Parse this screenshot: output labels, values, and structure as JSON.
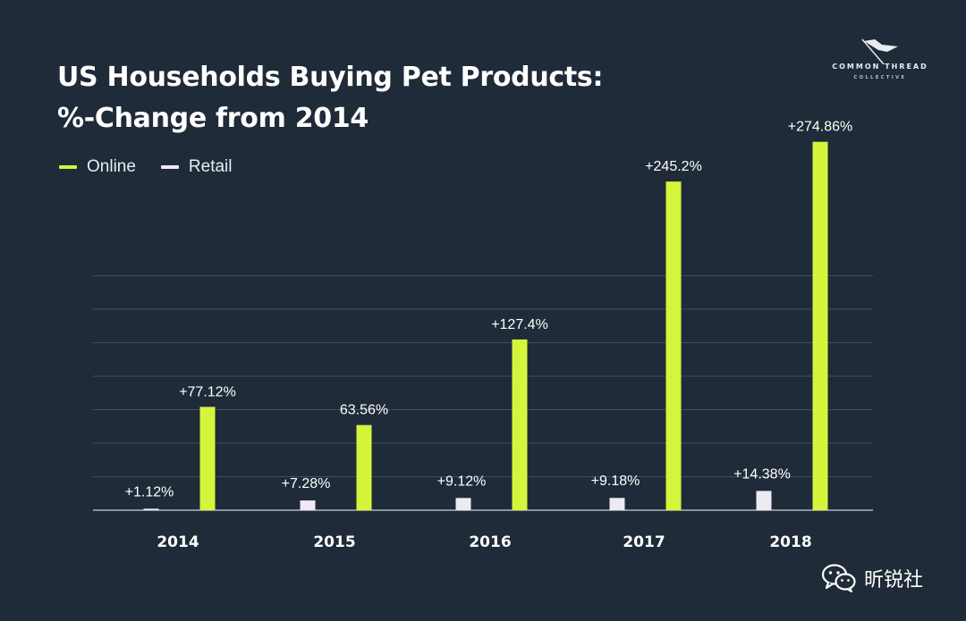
{
  "title_line1": "US Households Buying Pet Products:",
  "title_line2": "%-Change from 2014",
  "logo": {
    "main": "COMMON THREAD",
    "sub": "COLLECTIVE",
    "icon": "flag-icon"
  },
  "watermark": {
    "text": "昕锐社",
    "icon": "wechat-icon"
  },
  "colors": {
    "background": "#1f2b38",
    "online": "#d4f53c",
    "retail": "#eeeaf4",
    "grid": "#3f4f5f",
    "axis": "#c9d1d9"
  },
  "chart_data": {
    "type": "bar",
    "categories": [
      "2014",
      "2015",
      "2016",
      "2017",
      "2018"
    ],
    "series": [
      {
        "name": "Retail",
        "values": [
          1.12,
          7.28,
          9.12,
          9.18,
          14.38
        ],
        "labels": [
          "+1.12%",
          "+7.28%",
          "+9.12%",
          "+9.18%",
          "+14.38%"
        ]
      },
      {
        "name": "Online",
        "values": [
          77.12,
          63.56,
          127.4,
          245.2,
          274.86
        ],
        "labels": [
          "+77.12%",
          "63.56%",
          "+127.4%",
          "+245.2%",
          "+274.86%"
        ]
      }
    ],
    "legend_order": [
      "Online",
      "Retail"
    ],
    "ylim": [
      0,
      300
    ],
    "grid": true,
    "legend_position": "top-left",
    "xlabel": "",
    "ylabel": ""
  }
}
